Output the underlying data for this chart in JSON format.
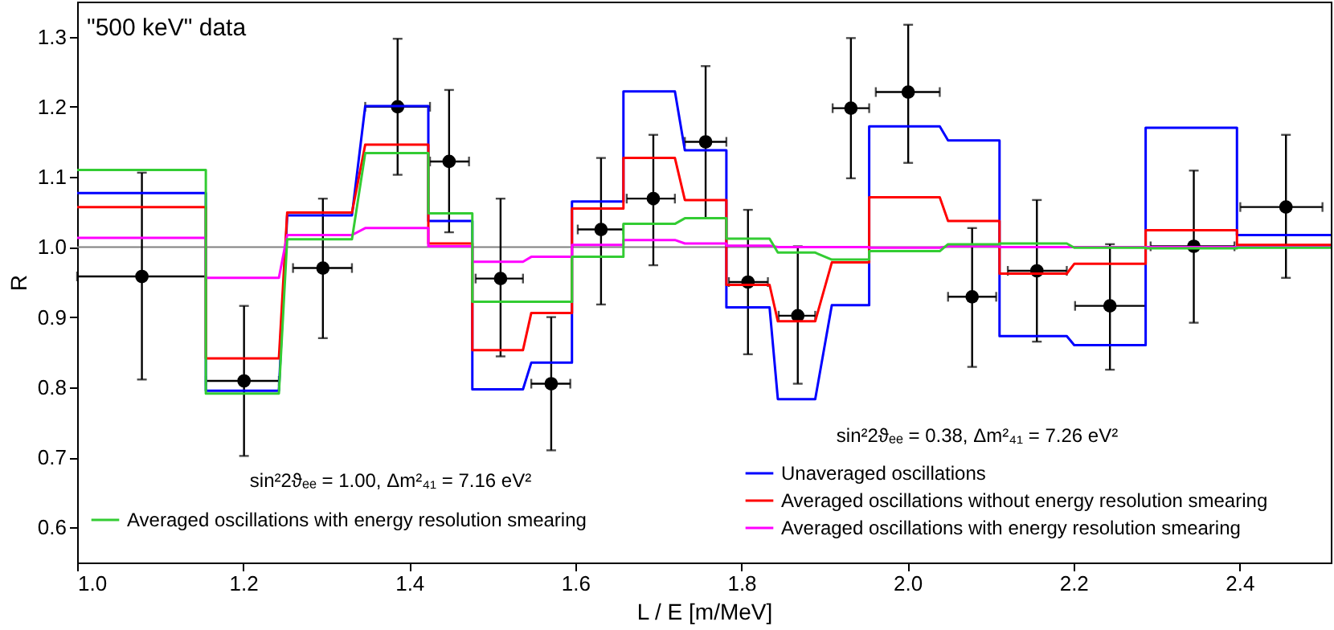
{
  "chart_data": {
    "type": "line",
    "xlabel": "L / E [m/MeV]",
    "ylabel": "R",
    "xlim": [
      1.0,
      2.51
    ],
    "ylim": [
      0.55,
      1.35
    ],
    "xticks": [
      {
        "value": 1,
        "label": "1.0"
      },
      1.2,
      1.4,
      1.6,
      1.8,
      {
        "value": 2,
        "label": "2.0"
      },
      2.2,
      2.4
    ],
    "yticks": [
      0.6,
      0.7,
      0.8,
      0.9,
      {
        "value": 1,
        "label": "1.0"
      },
      1.1,
      1.2,
      1.3
    ],
    "grid": false,
    "legend": "bottom",
    "marker": "none",
    "line_style": "solid",
    "annotations": [
      "\"500 keV\" data",
      "sin²2ϑₑₑ = 1.00, Δm²₄₁ = 7.16 eV²",
      "sin²2ϑₑₑ = 0.38, Δm²₄₁ = 7.26 eV²"
    ],
    "ref_lines": [
      {
        "axis": "y",
        "value": 1.0,
        "color": "#808080"
      }
    ],
    "series": [
      {
        "name": "Unaveraged oscillations",
        "color": "#0000ff",
        "x": [
          1.0,
          1.155,
          1.155,
          1.243,
          1.253,
          1.331,
          1.347,
          1.423,
          1.423,
          1.476,
          1.476,
          1.537,
          1.547,
          1.596,
          1.596,
          1.658,
          1.658,
          1.72,
          1.732,
          1.782,
          1.782,
          1.834,
          1.844,
          1.889,
          1.909,
          1.954,
          1.954,
          2.039,
          2.049,
          2.111,
          2.111,
          2.192,
          2.201,
          2.287,
          2.287,
          2.397,
          2.397,
          2.51
        ],
        "values": [
          1.077,
          1.077,
          0.795,
          0.795,
          1.045,
          1.045,
          1.201,
          1.201,
          1.037,
          1.037,
          0.797,
          0.797,
          0.835,
          0.835,
          1.065,
          1.065,
          1.222,
          1.222,
          1.138,
          1.138,
          0.914,
          0.914,
          0.783,
          0.783,
          0.917,
          0.917,
          1.172,
          1.172,
          1.152,
          1.152,
          0.873,
          0.873,
          0.86,
          0.86,
          1.17,
          1.17,
          1.017,
          1.017
        ]
      },
      {
        "name": "Averaged oscillations without energy resolution smearing",
        "color": "#ff0000",
        "x": [
          1.0,
          1.155,
          1.155,
          1.243,
          1.253,
          1.331,
          1.347,
          1.423,
          1.423,
          1.476,
          1.476,
          1.537,
          1.547,
          1.596,
          1.596,
          1.658,
          1.658,
          1.72,
          1.732,
          1.782,
          1.782,
          1.834,
          1.844,
          1.889,
          1.909,
          1.954,
          1.954,
          2.039,
          2.049,
          2.111,
          2.111,
          2.192,
          2.201,
          2.287,
          2.287,
          2.397,
          2.397,
          2.51
        ],
        "values": [
          1.057,
          1.057,
          0.841,
          0.841,
          1.049,
          1.049,
          1.146,
          1.146,
          1.005,
          1.005,
          0.853,
          0.853,
          0.906,
          0.906,
          1.055,
          1.055,
          1.127,
          1.127,
          1.067,
          1.067,
          0.946,
          0.946,
          0.894,
          0.894,
          0.978,
          0.978,
          1.071,
          1.071,
          1.037,
          1.037,
          0.962,
          0.962,
          0.976,
          0.976,
          1.024,
          1.024,
          1.003,
          1.003
        ]
      },
      {
        "name": "Averaged oscillations with energy resolution smearing",
        "color": "#ff00ff",
        "x": [
          1.0,
          1.155,
          1.155,
          1.243,
          1.253,
          1.331,
          1.347,
          1.423,
          1.423,
          1.476,
          1.476,
          1.537,
          1.547,
          1.596,
          1.596,
          1.658,
          1.658,
          1.72,
          1.732,
          1.782,
          1.782,
          1.834,
          1.844,
          1.889,
          1.909,
          1.954,
          1.954,
          2.039,
          2.049,
          2.111,
          2.111,
          2.192,
          2.201,
          2.287,
          2.287,
          2.397,
          2.397,
          2.51
        ],
        "values": [
          1.013,
          1.013,
          0.956,
          0.956,
          1.017,
          1.017,
          1.027,
          1.027,
          1.001,
          1.001,
          0.979,
          0.979,
          0.986,
          0.986,
          1.003,
          1.003,
          1.01,
          1.01,
          1.005,
          1.005,
          1.002,
          1.002,
          1.0,
          1.0,
          1.0,
          1.0,
          0.999,
          0.999,
          1.001,
          1.001,
          1.0,
          1.0,
          1.0,
          1.0,
          1.0,
          1.0,
          1.0,
          1.0
        ]
      },
      {
        "name": "Averaged oscillations with energy resolution smearing",
        "color": "#33cc33",
        "x": [
          1.0,
          1.155,
          1.155,
          1.243,
          1.253,
          1.331,
          1.347,
          1.423,
          1.423,
          1.476,
          1.476,
          1.537,
          1.547,
          1.596,
          1.596,
          1.658,
          1.658,
          1.72,
          1.732,
          1.782,
          1.782,
          1.834,
          1.844,
          1.889,
          1.909,
          1.954,
          1.954,
          2.039,
          2.049,
          2.111,
          2.111,
          2.192,
          2.201,
          2.287,
          2.287,
          2.397,
          2.397,
          2.51
        ],
        "values": [
          1.11,
          1.11,
          0.791,
          0.791,
          1.011,
          1.011,
          1.134,
          1.134,
          1.048,
          1.048,
          0.922,
          0.922,
          0.922,
          0.922,
          0.986,
          0.986,
          1.033,
          1.033,
          1.041,
          1.041,
          1.012,
          1.012,
          0.992,
          0.992,
          0.982,
          0.982,
          0.994,
          0.994,
          1.004,
          1.004,
          1.005,
          1.005,
          0.999,
          0.999,
          0.998,
          0.998,
          0.999,
          0.999
        ]
      },
      {
        "color": "#000000",
        "type": "scatter",
        "marker": "circle",
        "x": [
          1.078,
          1.201,
          1.296,
          1.386,
          1.448,
          1.51,
          1.571,
          1.631,
          1.694,
          1.757,
          1.808,
          1.868,
          1.932,
          2.001,
          2.078,
          2.156,
          2.244,
          2.345,
          2.456
        ],
        "values": [
          0.958,
          0.809,
          0.97,
          1.2,
          1.122,
          0.955,
          0.805,
          1.025,
          1.069,
          1.15,
          0.95,
          0.902,
          1.198,
          1.221,
          0.929,
          0.966,
          0.916,
          1.001,
          1.057
        ],
        "errors": [
          [
            0.811,
            1.106
          ],
          [
            0.702,
            0.916
          ],
          [
            0.87,
            1.069
          ],
          [
            1.103,
            1.297
          ],
          [
            1.021,
            1.224
          ],
          [
            0.844,
            1.069
          ],
          [
            0.71,
            0.9
          ],
          [
            0.918,
            1.127
          ],
          [
            0.974,
            1.16
          ],
          [
            1.041,
            1.258
          ],
          [
            0.847,
            1.053
          ],
          [
            0.805,
            1.001
          ],
          [
            1.098,
            1.298
          ],
          [
            1.12,
            1.317
          ],
          [
            0.829,
            1.027
          ],
          [
            0.865,
            1.067
          ],
          [
            0.825,
            1.004
          ],
          [
            0.892,
            1.109
          ],
          [
            0.956,
            1.16
          ]
        ],
        "xerrors": [
          [
            1.0,
            1.155
          ],
          [
            1.155,
            1.243
          ],
          [
            1.26,
            1.331
          ],
          [
            1.347,
            1.425
          ],
          [
            1.425,
            1.472
          ],
          [
            1.48,
            1.537
          ],
          [
            1.547,
            1.594
          ],
          [
            1.603,
            1.658
          ],
          [
            1.662,
            1.72
          ],
          [
            1.732,
            1.782
          ],
          [
            1.785,
            1.832
          ],
          [
            1.845,
            1.889
          ],
          [
            1.91,
            1.954
          ],
          [
            1.962,
            2.039
          ],
          [
            2.049,
            2.107
          ],
          [
            2.121,
            2.192
          ],
          [
            2.202,
            2.287
          ],
          [
            2.293,
            2.394
          ],
          [
            2.401,
            2.5
          ]
        ]
      }
    ]
  }
}
